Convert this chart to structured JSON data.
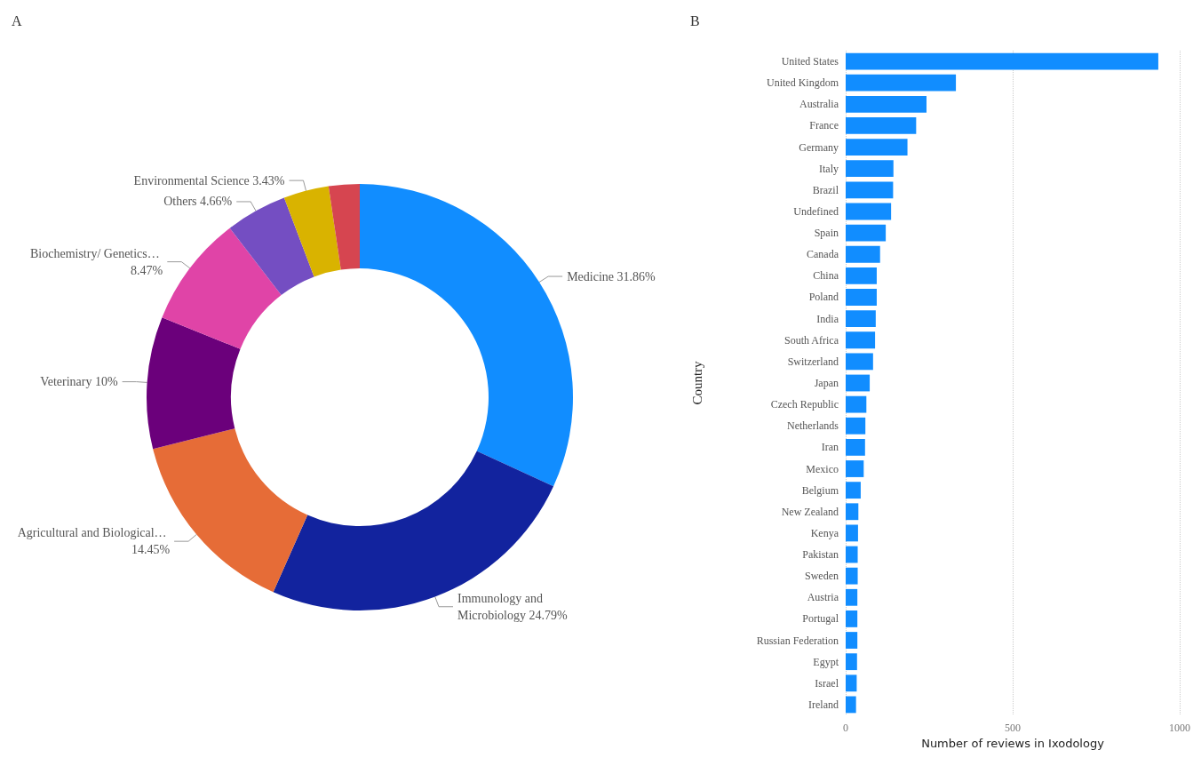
{
  "chart_data": [
    {
      "type": "donut",
      "title": "A",
      "categories": [
        "Medicine",
        "Immunology and Microbiology",
        "Agricultural and Biological…",
        "Veterinary",
        "Biochemistry/ Genetics…",
        "Others",
        "Environmental Science",
        null
      ],
      "values": [
        31.86,
        24.79,
        14.45,
        10,
        8.47,
        4.66,
        3.43,
        2.34
      ],
      "value_labels": [
        "31.86%",
        "24.79%",
        "14.45%",
        "10%",
        "8.47%",
        "4.66%",
        "3.43%",
        null
      ],
      "colors": [
        "#118dff",
        "#12239e",
        "#e66c37",
        "#6b007b",
        "#e044a7",
        "#744ec2",
        "#d9b300",
        "#d64550"
      ],
      "legend": false
    },
    {
      "type": "bar",
      "orientation": "horizontal",
      "title": "B",
      "xlabel": "Number of reviews in Ixodology",
      "ylabel": "Country",
      "categories": [
        "United States",
        "United Kingdom",
        "Australia",
        "France",
        "Germany",
        "Italy",
        "Brazil",
        "Undefined",
        "Spain",
        "Canada",
        "China",
        "Poland",
        "India",
        "South Africa",
        "Switzerland",
        "Japan",
        "Czech Republic",
        "Netherlands",
        "Iran",
        "Mexico",
        "Belgium",
        "New Zealand",
        "Kenya",
        "Pakistan",
        "Sweden",
        "Austria",
        "Portugal",
        "Russian Federation",
        "Egypt",
        "Israel",
        "Ireland"
      ],
      "values": [
        936,
        330,
        242,
        211,
        185,
        143,
        142,
        136,
        120,
        103,
        93,
        93,
        90,
        88,
        82,
        72,
        62,
        59,
        58,
        54,
        45,
        38,
        37,
        36,
        36,
        35,
        35,
        35,
        34,
        33,
        31
      ],
      "color": "#118dff",
      "xlim": [
        0,
        1000
      ],
      "xticks": [
        0,
        500,
        1000
      ],
      "grid": "x",
      "legend": false
    }
  ]
}
